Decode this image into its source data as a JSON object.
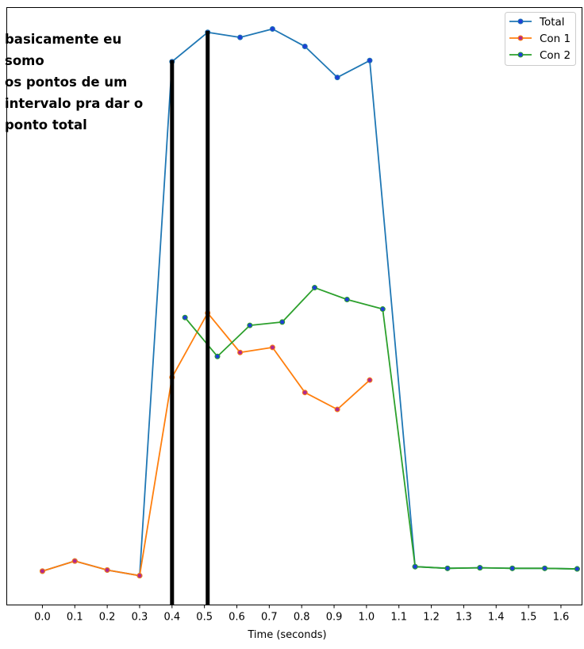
{
  "annotation_text": "basicamente eu somo\nos pontos de um\nintervalo pra dar o\nponto total",
  "chart_data": {
    "type": "line",
    "title": "",
    "xlabel": "Time (seconds)",
    "ylabel": "",
    "xlim": [
      -0.11,
      1.665
    ],
    "ylim": [
      -0.06,
      1.0
    ],
    "xticks": [
      0.0,
      0.1,
      0.2,
      0.3,
      0.4,
      0.5,
      0.6,
      0.7,
      0.8,
      0.9,
      1.0,
      1.1,
      1.2,
      1.3,
      1.4,
      1.5,
      1.6
    ],
    "xtick_labels": [
      "0.0",
      "0.1",
      "0.2",
      "0.3",
      "0.4",
      "0.5",
      "0.6",
      "0.7",
      "0.8",
      "0.9",
      "1.0",
      "1.1",
      "1.2",
      "1.3",
      "1.4",
      "1.5",
      "1.6"
    ],
    "y_tick_labels_shown": false,
    "grid": false,
    "legend_position": "top-right",
    "series": [
      {
        "name": "Total",
        "color": "#1f77b4",
        "marker_fill": "#1f3fd6",
        "x": [
          0.0,
          0.1,
          0.2,
          0.3,
          0.4,
          0.51,
          0.61,
          0.71,
          0.81,
          0.91,
          1.01,
          1.15,
          1.25,
          1.35,
          1.45,
          1.55,
          1.65
        ],
        "y": [
          0.0,
          0.018,
          0.002,
          -0.008,
          0.904,
          0.956,
          0.947,
          0.962,
          0.931,
          0.876,
          0.906,
          0.008,
          0.005,
          0.006,
          0.005,
          0.005,
          0.004
        ]
      },
      {
        "name": "Con 1",
        "color": "#ff7f0e",
        "marker_fill": "#b02a8e",
        "x": [
          0.0,
          0.1,
          0.2,
          0.3,
          0.4,
          0.51,
          0.61,
          0.71,
          0.81,
          0.91,
          1.01
        ],
        "y": [
          0.0,
          0.018,
          0.002,
          -0.008,
          0.344,
          0.458,
          0.388,
          0.397,
          0.317,
          0.287,
          0.339
        ]
      },
      {
        "name": "Con 2",
        "color": "#2ca02c",
        "marker_fill": "#1f3fd6",
        "x": [
          0.44,
          0.54,
          0.64,
          0.74,
          0.84,
          0.94,
          1.05,
          1.15,
          1.25,
          1.35,
          1.45,
          1.55,
          1.65
        ],
        "y": [
          0.45,
          0.381,
          0.436,
          0.442,
          0.503,
          0.482,
          0.465,
          0.008,
          0.005,
          0.006,
          0.005,
          0.005,
          0.004
        ]
      }
    ],
    "vertical_markers": [
      {
        "x": 0.4,
        "color": "#000000"
      },
      {
        "x": 0.51,
        "color": "#000000"
      }
    ]
  }
}
